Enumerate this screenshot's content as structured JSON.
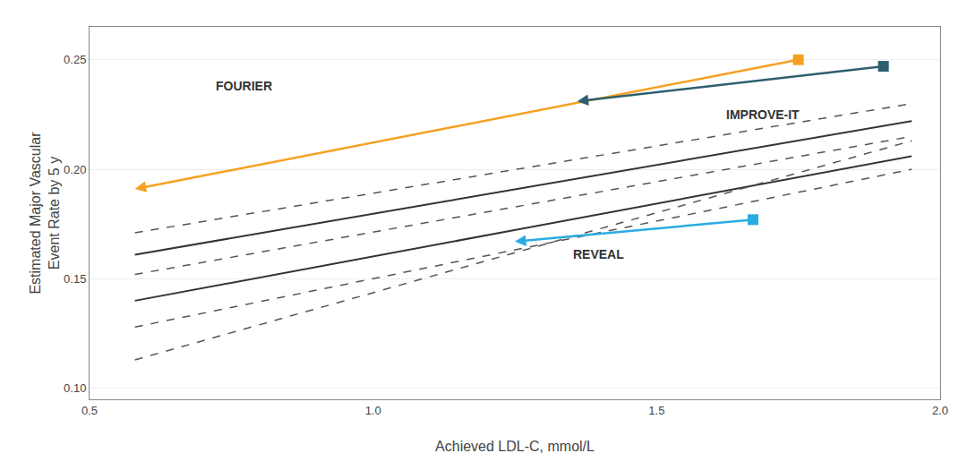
{
  "chart_data": {
    "type": "line",
    "xlabel": "Achieved LDL-C, mmol/L",
    "ylabel": "Estimated Major Vascular\nEvent Rate by 5 y",
    "xlim": [
      0.5,
      2.0
    ],
    "ylim": [
      0.095,
      0.265
    ],
    "xticks": [
      0.5,
      {
        "value": 1.0,
        "label": "1.0"
      },
      1.5,
      {
        "value": 2.0,
        "label": "2.0"
      }
    ],
    "yticks": [
      {
        "value": 0.1,
        "label": "0.10"
      },
      0.15,
      {
        "value": 0.2,
        "label": "0.20"
      },
      0.25
    ],
    "grid": "y",
    "series": [
      {
        "x": [
          0.58,
          1.95
        ],
        "values": [
          0.161,
          0.222
        ],
        "color": "#333333",
        "line_style": "solid"
      },
      {
        "x": [
          0.58,
          1.95
        ],
        "values": [
          0.14,
          0.206
        ],
        "color": "#333333",
        "line_style": "solid"
      },
      {
        "x": [
          0.58,
          1.95
        ],
        "values": [
          0.171,
          0.23
        ],
        "color": "#555555",
        "line_style": "dashed"
      },
      {
        "x": [
          0.58,
          1.95
        ],
        "values": [
          0.152,
          0.215
        ],
        "color": "#555555",
        "line_style": "dashed"
      },
      {
        "x": [
          0.58,
          1.95
        ],
        "values": [
          0.128,
          0.2
        ],
        "color": "#555555",
        "line_style": "dashed"
      },
      {
        "x": [
          0.58,
          1.95
        ],
        "values": [
          0.113,
          0.213
        ],
        "color": "#555555",
        "line_style": "dashed"
      },
      {
        "type": "arrow",
        "x": [
          1.75,
          0.58
        ],
        "values": [
          0.25,
          0.191
        ],
        "color": "#f5a020",
        "marker": "square"
      },
      {
        "type": "arrow",
        "x": [
          1.9,
          1.36
        ],
        "values": [
          0.247,
          0.231
        ],
        "color": "#2e5f6e",
        "marker": "square"
      },
      {
        "type": "arrow",
        "x": [
          1.67,
          1.25
        ],
        "values": [
          0.177,
          0.167
        ],
        "color": "#29abe2",
        "marker": "square"
      }
    ],
    "annotations": [
      {
        "text": "FOURIER",
        "x": 0.72,
        "y": 0.238,
        "color": "#333333"
      },
      {
        "text": "IMPROVE-IT",
        "x": 1.62,
        "y": 0.225,
        "color": "#333333"
      },
      {
        "text": "REVEAL",
        "x": 1.35,
        "y": 0.161,
        "color": "#333333"
      }
    ]
  }
}
